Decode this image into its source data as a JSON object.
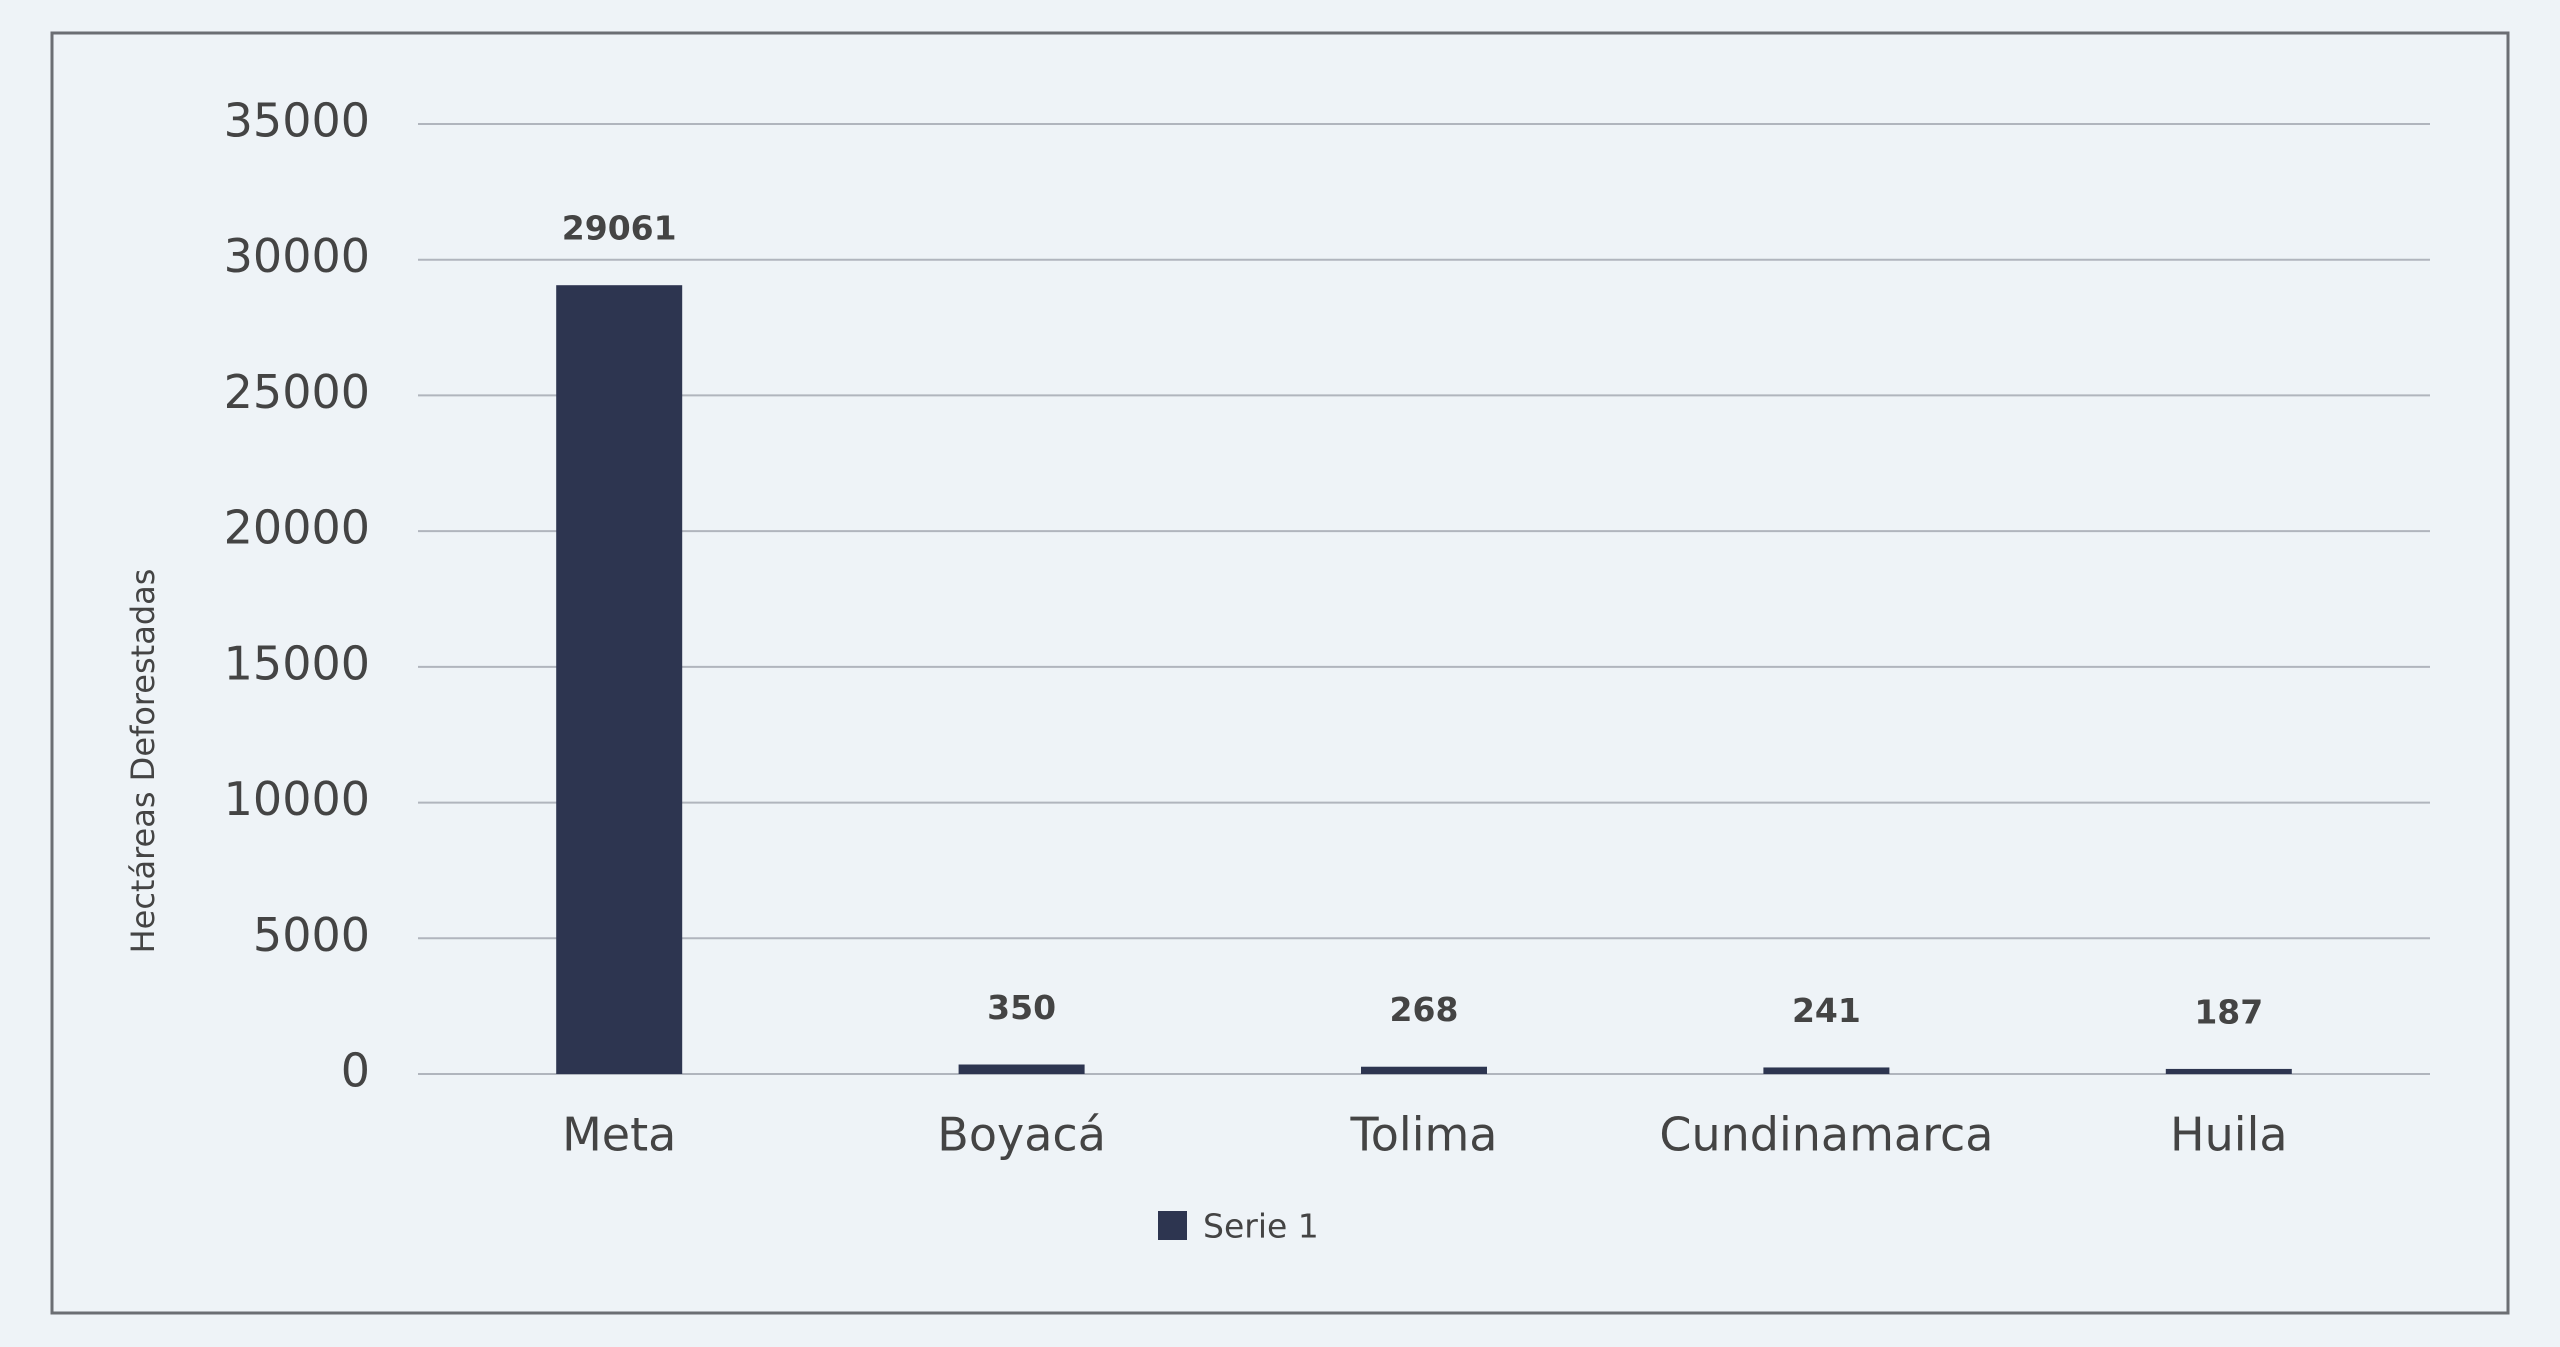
{
  "chart_data": {
    "type": "bar",
    "y_label": "Hectáreas Deforestadas",
    "categories": [
      "Meta",
      "Boyacá",
      "Tolima",
      "Cundinamarca",
      "Huila"
    ],
    "series": [
      {
        "name": "Serie 1",
        "color": "#2d3550",
        "values": [
          29061,
          350,
          268,
          241,
          187
        ]
      }
    ],
    "ylim": [
      0,
      35000
    ],
    "yticks": [
      0,
      5000,
      10000,
      15000,
      20000,
      25000,
      30000,
      35000
    ],
    "grid": true,
    "legend": "bottom",
    "data_labels": true
  }
}
